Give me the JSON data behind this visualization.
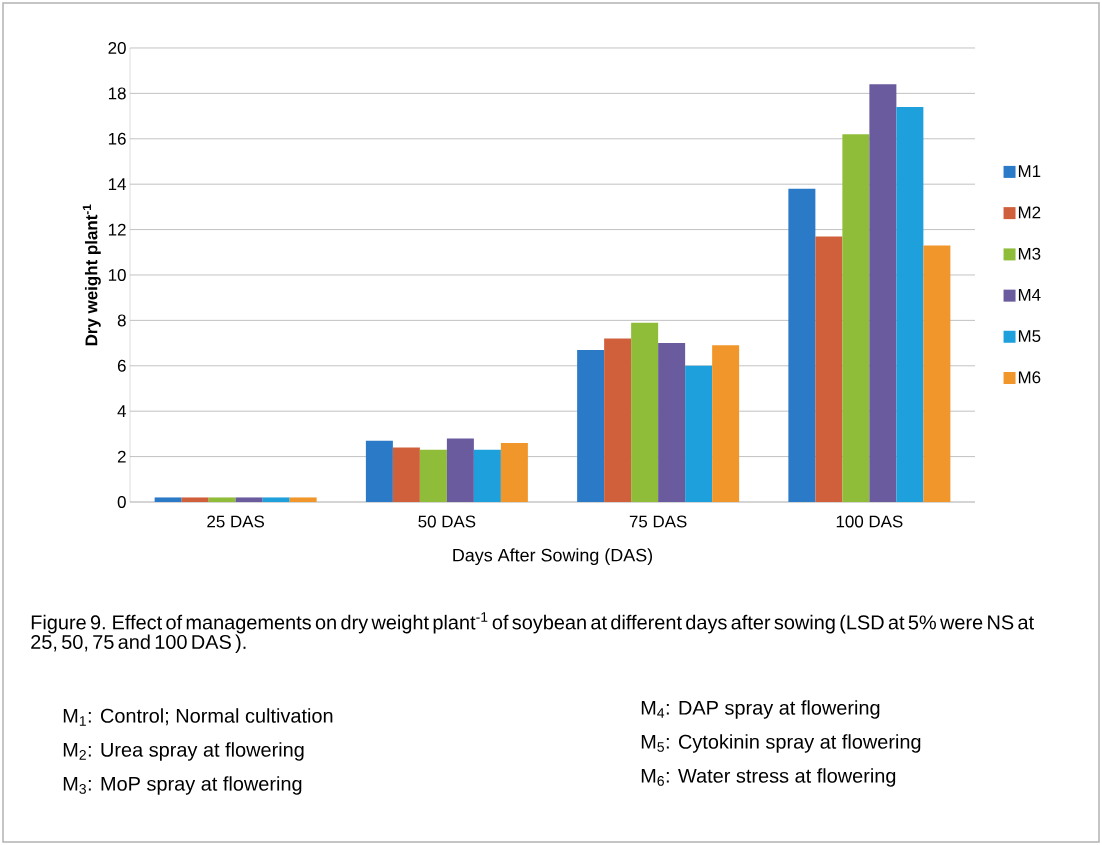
{
  "chart_data": {
    "type": "bar",
    "xlabel": "Days After Sowing (DAS)",
    "ylabel": "**Dry weight plant$^{-1}$**",
    "categories": [
      "25 DAS",
      "50 DAS",
      "75 DAS",
      "100 DAS"
    ],
    "series": [
      {
        "name": "M1",
        "color": "#2a7ac7",
        "values": [
          0.2,
          2.7,
          6.7,
          13.8
        ]
      },
      {
        "name": "M2",
        "color": "#d0603c",
        "values": [
          0.2,
          2.4,
          7.2,
          11.7
        ]
      },
      {
        "name": "M3",
        "color": "#8fbd3a",
        "values": [
          0.2,
          2.3,
          7.9,
          16.2
        ]
      },
      {
        "name": "M4",
        "color": "#6a5a9e",
        "values": [
          0.2,
          2.8,
          7.0,
          18.4
        ]
      },
      {
        "name": "M5",
        "color": "#1ea0dc",
        "values": [
          0.2,
          2.3,
          6.0,
          17.4
        ]
      },
      {
        "name": "M6",
        "color": "#f0962a",
        "values": [
          0.2,
          2.6,
          6.9,
          11.3
        ]
      }
    ],
    "ylim": [
      0,
      20
    ],
    "yticks": [
      0,
      2,
      4,
      6,
      8,
      10,
      12,
      14,
      16,
      18,
      20
    ],
    "grid": "y",
    "legend": "right",
    "annotations": [
      "Figure 9. Effect of managements on dry weight plant$^{-1}$ of soybean at different days after sowing (LSD at 5% were NS at 25, 50, 75 and 100 DAS ).",
      "M$_{1}$: Control; Normal cultivation",
      "M$_{2}$: Urea spray at flowering",
      "M$_{3}$: MoP spray at flowering",
      "M$_{4}$: DAP spray at flowering",
      "M$_{5}$: Cytokinin spray at flowering",
      "M$_{6}$: Water stress at flowering"
    ]
  }
}
